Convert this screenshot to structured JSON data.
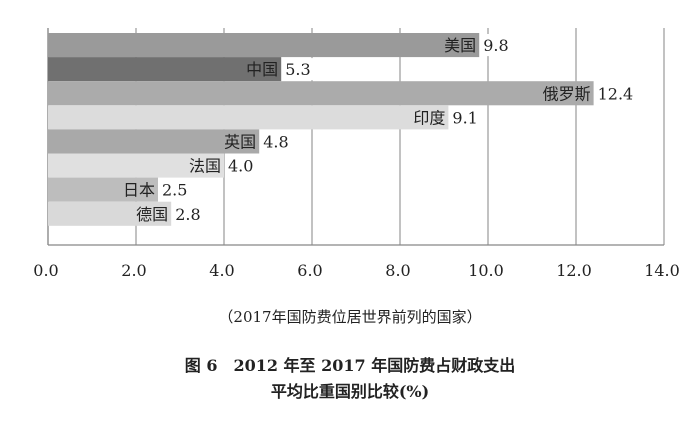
{
  "chart_data": {
    "type": "bar",
    "orientation": "horizontal",
    "categories": [
      "美国",
      "中国",
      "俄罗斯",
      "印度",
      "英国",
      "法国",
      "日本",
      "德国"
    ],
    "values": [
      9.8,
      5.3,
      12.4,
      9.1,
      4.8,
      4.0,
      2.5,
      2.8
    ],
    "value_labels": [
      "9.8",
      "5.3",
      "12.4",
      "9.1",
      "4.8",
      "4.0",
      "2.5",
      "2.8"
    ],
    "colors": [
      "#9a9a9a",
      "#707070",
      "#ababab",
      "#dcdcdc",
      "#a9a9a9",
      "#e0e0e0",
      "#bdbdbd",
      "#d9d9d9"
    ],
    "xlim": [
      0,
      14
    ],
    "xticks": [
      "0.0",
      "2.0",
      "4.0",
      "6.0",
      "8.0",
      "10.0",
      "12.0",
      "14.0"
    ],
    "grid": true,
    "xlabel": "（2017年国防费位居世界前列的国家）",
    "title": "图 6　2012 年至 2017 年国防费占财政支出",
    "title_line2": "平均比重国别比较(%)"
  }
}
